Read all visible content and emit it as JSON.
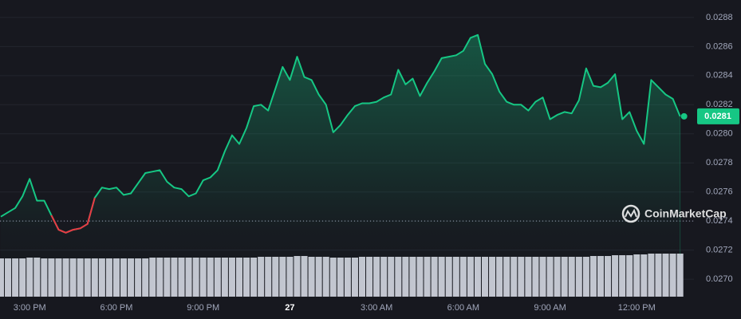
{
  "chart_data": {
    "type": "line",
    "brand": "CoinMarketCap",
    "last_value_label": "0.0281",
    "line_color": "#16c784",
    "down_color": "#ea3943",
    "baseline": 0.0274,
    "grid": true,
    "ylim": [
      0.02688,
      0.02892
    ],
    "yticks": [
      {
        "value": 0.027,
        "label": "0.0270"
      },
      0.0272,
      0.0274,
      0.0276,
      0.0278,
      {
        "value": 0.028,
        "label": "0.0280"
      },
      0.0282,
      0.0284,
      0.0286,
      0.0288
    ],
    "categories": [
      null,
      null,
      null,
      null,
      "3:00 PM",
      null,
      null,
      null,
      null,
      null,
      null,
      null,
      null,
      null,
      null,
      null,
      "6:00 PM",
      null,
      null,
      null,
      null,
      null,
      null,
      null,
      null,
      null,
      null,
      null,
      "9:00 PM",
      null,
      null,
      null,
      null,
      null,
      null,
      null,
      null,
      null,
      null,
      null,
      "27",
      null,
      null,
      null,
      null,
      null,
      null,
      null,
      null,
      null,
      null,
      null,
      "3:00 AM",
      null,
      null,
      null,
      null,
      null,
      null,
      null,
      null,
      null,
      null,
      null,
      "6:00 AM",
      null,
      null,
      null,
      null,
      null,
      null,
      null,
      null,
      null,
      null,
      null,
      "9:00 AM",
      null,
      null,
      null,
      null,
      null,
      null,
      null,
      null,
      null,
      null,
      null,
      "12:00 PM",
      null,
      null,
      null,
      null,
      null,
      null
    ],
    "values": [
      0.02743,
      0.02746,
      0.02749,
      0.02757,
      0.02769,
      0.02754,
      0.02754,
      0.02744,
      0.02734,
      0.02732,
      0.02734,
      0.02735,
      0.02738,
      0.02756,
      0.02763,
      0.02762,
      0.02763,
      0.02758,
      0.02759,
      0.02766,
      0.02773,
      0.02774,
      0.02775,
      0.02767,
      0.02763,
      0.02762,
      0.02757,
      0.02759,
      0.02768,
      0.0277,
      0.02775,
      0.02788,
      0.02799,
      0.02793,
      0.02804,
      0.02819,
      0.0282,
      0.02816,
      0.02831,
      0.02846,
      0.02837,
      0.02853,
      0.02839,
      0.02837,
      0.02827,
      0.0282,
      0.02801,
      0.02806,
      0.02813,
      0.02819,
      0.02821,
      0.02821,
      0.02822,
      0.02825,
      0.02827,
      0.02844,
      0.02834,
      0.02838,
      0.02826,
      0.02835,
      0.02843,
      0.02852,
      0.02853,
      0.02854,
      0.02857,
      0.02866,
      0.02868,
      0.02848,
      0.02841,
      0.02829,
      0.02822,
      0.0282,
      0.0282,
      0.02816,
      0.02822,
      0.02825,
      0.0281,
      0.02813,
      0.02815,
      0.02814,
      0.02823,
      0.02845,
      0.02833,
      0.02832,
      0.02835,
      0.02841,
      0.0281,
      0.02815,
      0.02802,
      0.02793,
      0.02837,
      0.02832,
      0.02827,
      0.02824,
      0.02812
    ],
    "volume_color": "#d6d9e3",
    "volume": [
      48,
      48,
      48,
      48,
      49,
      49,
      48,
      48,
      48,
      48,
      48,
      48,
      48,
      48,
      48,
      48,
      48,
      48,
      48,
      48,
      48,
      49,
      49,
      49,
      49,
      49,
      49,
      49,
      49,
      49,
      49,
      49,
      49,
      49,
      49,
      49,
      50,
      50,
      50,
      50,
      50,
      51,
      51,
      50,
      50,
      50,
      49,
      49,
      49,
      49,
      50,
      50,
      50,
      50,
      50,
      50,
      50,
      50,
      50,
      50,
      50,
      50,
      50,
      50,
      50,
      50,
      50,
      50,
      50,
      50,
      50,
      50,
      50,
      50,
      50,
      50,
      50,
      50,
      50,
      50,
      50,
      50,
      51,
      51,
      51,
      52,
      52,
      52,
      53,
      53,
      54,
      54,
      54,
      54,
      54
    ]
  }
}
